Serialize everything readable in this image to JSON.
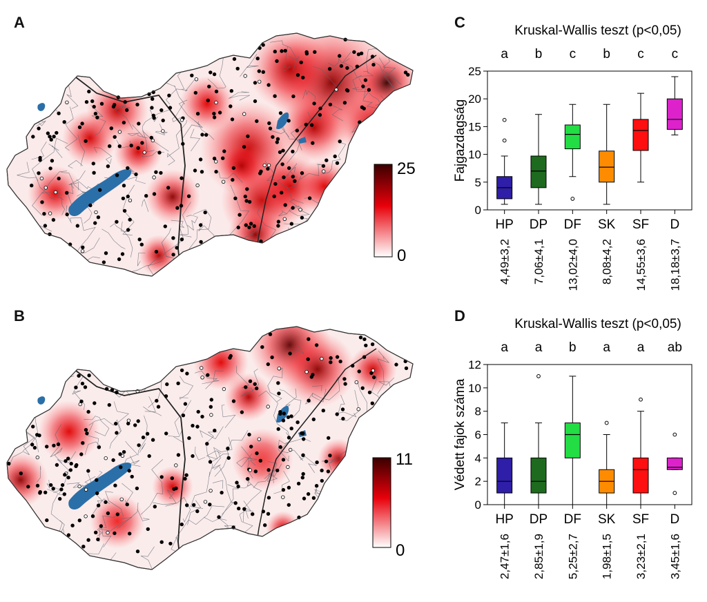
{
  "panels": {
    "a": {
      "letter": "A"
    },
    "b": {
      "letter": "B"
    },
    "c": {
      "letter": "C"
    },
    "d": {
      "letter": "D"
    }
  },
  "maps": [
    {
      "id": "A",
      "colorbar": {
        "max": "25",
        "min": "0"
      },
      "color_high": "#3a0000",
      "color_mid": "#e8000a",
      "color_low": "#ffffff"
    },
    {
      "id": "B",
      "colorbar": {
        "max": "11",
        "min": "0"
      },
      "color_high": "#3a0000",
      "color_mid": "#e8000a",
      "color_low": "#ffffff"
    }
  ],
  "chart_data": [
    {
      "type": "box",
      "panel": "C",
      "title": "Kruskal-Wallis teszt (p<0,05)",
      "ylabel": "Fajgazdagság",
      "xlabel": "",
      "ylim": [
        0,
        25
      ],
      "yticks": [
        0,
        5,
        10,
        15,
        20,
        25
      ],
      "categories": [
        "HP",
        "DP",
        "DF",
        "SK",
        "SF",
        "D"
      ],
      "letters": [
        "a",
        "b",
        "c",
        "b",
        "c",
        "c"
      ],
      "means": [
        "4,49±3,2",
        "7,06±4,1",
        "13,02±4,0",
        "8,08±4,2",
        "14,55±3,6",
        "18,18±3,7"
      ],
      "colors": [
        "#2e1ea8",
        "#1e6a1e",
        "#22dd44",
        "#ff8c00",
        "#ff1010",
        "#dd22cc"
      ],
      "boxes": [
        {
          "min": 1,
          "q1": 2,
          "median": 4,
          "q3": 6,
          "max": 9.7,
          "outliers": [
            12.5,
            16.2
          ]
        },
        {
          "min": 1,
          "q1": 4,
          "median": 7,
          "q3": 9.7,
          "max": 17.2,
          "outliers": []
        },
        {
          "min": 6,
          "q1": 11,
          "median": 13.6,
          "q3": 15.3,
          "max": 19,
          "outliers": [
            2
          ]
        },
        {
          "min": 1,
          "q1": 5,
          "median": 7.7,
          "q3": 10.6,
          "max": 19,
          "outliers": []
        },
        {
          "min": 5,
          "q1": 10.7,
          "median": 14.3,
          "q3": 16.3,
          "max": 21,
          "outliers": []
        },
        {
          "min": 13.5,
          "q1": 14.5,
          "median": 16.3,
          "q3": 20,
          "max": 24,
          "outliers": []
        }
      ]
    },
    {
      "type": "box",
      "panel": "D",
      "title": "Kruskal-Wallis teszt (p<0,05)",
      "ylabel": "Védett fajok száma",
      "xlabel": "",
      "ylim": [
        0,
        12
      ],
      "yticks": [
        0,
        2,
        4,
        6,
        8,
        10,
        12
      ],
      "categories": [
        "HP",
        "DP",
        "DF",
        "SK",
        "SF",
        "D"
      ],
      "letters": [
        "a",
        "a",
        "b",
        "a",
        "a",
        "ab"
      ],
      "means": [
        "2,47±1,6",
        "2,85±1,9",
        "5,25±2,7",
        "1,98±1,5",
        "3,23±2,1",
        "3,45±1,6"
      ],
      "colors": [
        "#2e1ea8",
        "#1e6a1e",
        "#22dd44",
        "#ff8c00",
        "#ff1010",
        "#dd22cc"
      ],
      "boxes": [
        {
          "min": 0,
          "q1": 1,
          "median": 2,
          "q3": 4,
          "max": 7,
          "outliers": []
        },
        {
          "min": 0,
          "q1": 1,
          "median": 2,
          "q3": 4,
          "max": 7,
          "outliers": [
            11
          ]
        },
        {
          "min": 0,
          "q1": 4,
          "median": 6,
          "q3": 7,
          "max": 11,
          "outliers": []
        },
        {
          "min": 0,
          "q1": 1,
          "median": 2,
          "q3": 3,
          "max": 6,
          "outliers": [
            7
          ]
        },
        {
          "min": 0,
          "q1": 1,
          "median": 3,
          "q3": 4,
          "max": 8,
          "outliers": [
            9
          ]
        },
        {
          "min": 3,
          "q1": 3,
          "median": 3.2,
          "q3": 4,
          "max": 4,
          "outliers": [
            1,
            6
          ]
        }
      ]
    }
  ]
}
